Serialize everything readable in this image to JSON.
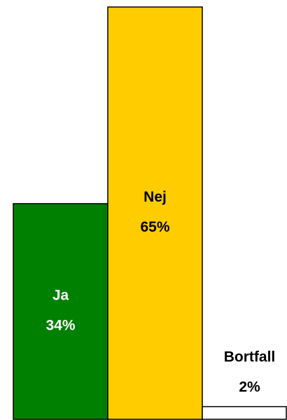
{
  "chart_data": {
    "type": "bar",
    "categories": [
      "Ja",
      "Nej",
      "Bortfall"
    ],
    "values": [
      34,
      65,
      2
    ],
    "value_labels": [
      "34%",
      "65%",
      "2%"
    ],
    "colors": [
      "#008000",
      "#ffcc00",
      "#ffffff"
    ],
    "label_colors": [
      "#ffffff",
      "#000000",
      "#000000"
    ]
  }
}
